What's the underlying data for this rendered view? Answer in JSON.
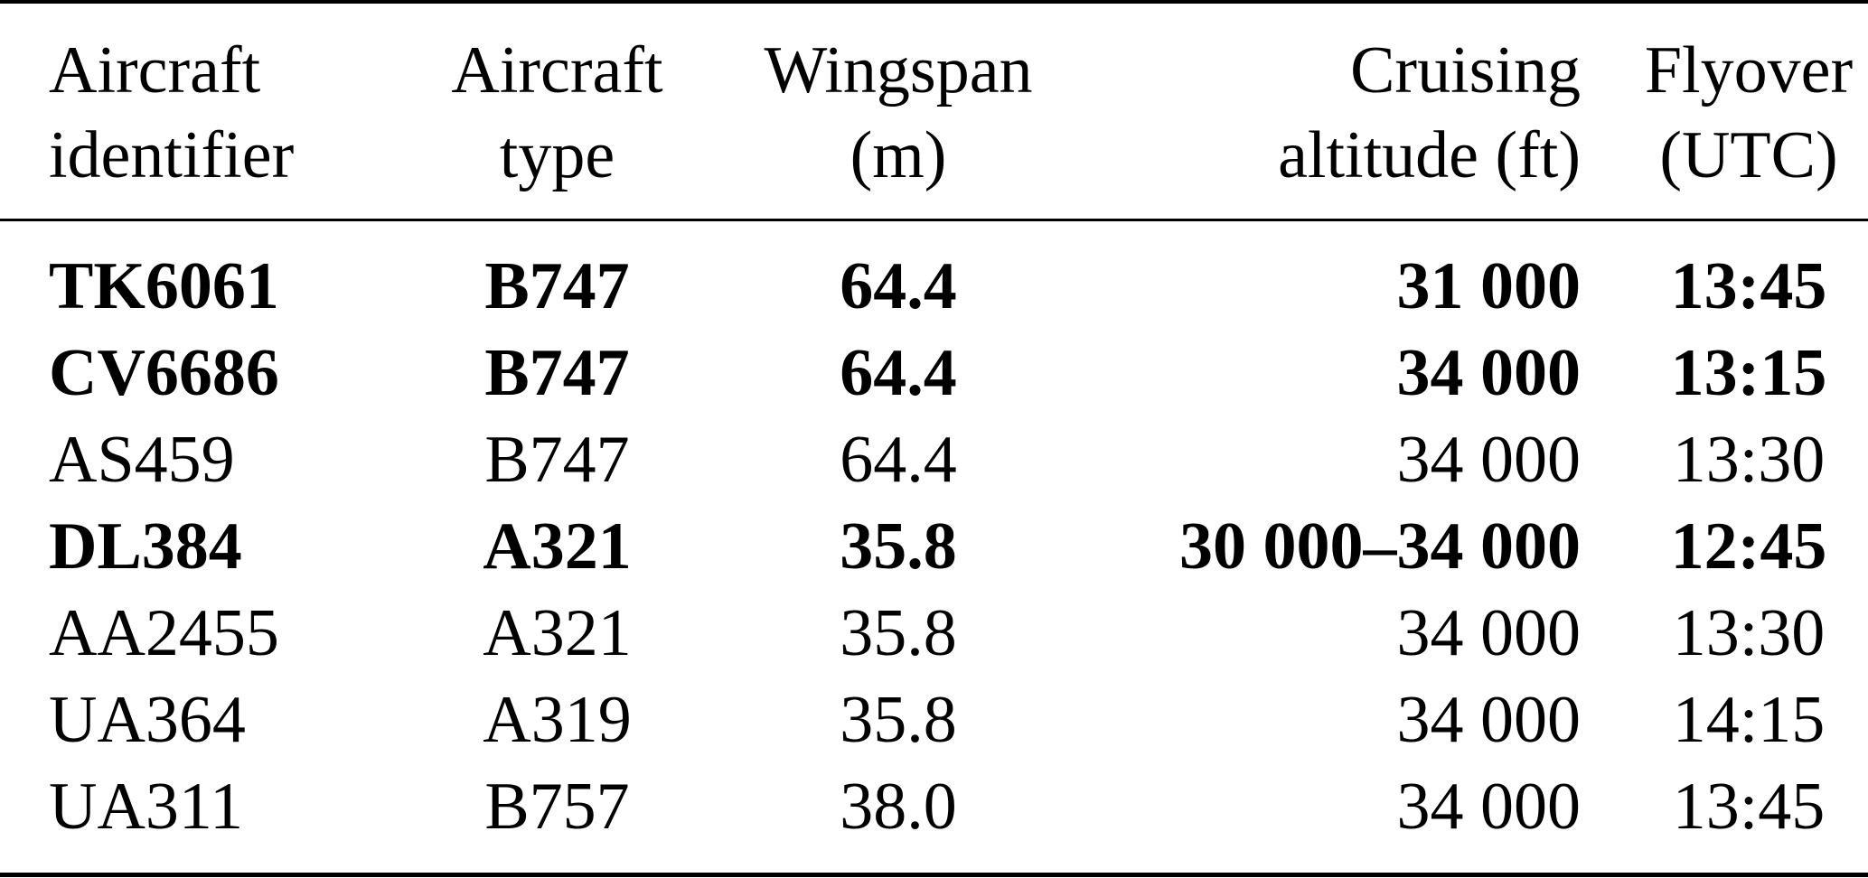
{
  "table": {
    "headers": [
      {
        "line1": "Aircraft",
        "line2": "identifier"
      },
      {
        "line1": "Aircraft",
        "line2": "type"
      },
      {
        "line1": "Wingspan",
        "line2": "(m)"
      },
      {
        "line1": "Cruising",
        "line2": "altitude (ft)"
      },
      {
        "line1": "Flyover",
        "line2": "(UTC)"
      }
    ],
    "rows": [
      {
        "bold": true,
        "id": "TK6061",
        "type": "B747",
        "wingspan": "64.4",
        "altitude": "31 000",
        "flyover": "13:45"
      },
      {
        "bold": true,
        "id": "CV6686",
        "type": "B747",
        "wingspan": "64.4",
        "altitude": "34 000",
        "flyover": "13:15"
      },
      {
        "bold": false,
        "id": "AS459",
        "type": "B747",
        "wingspan": "64.4",
        "altitude": "34 000",
        "flyover": "13:30"
      },
      {
        "bold": true,
        "id": "DL384",
        "type": "A321",
        "wingspan": "35.8",
        "altitude": "30 000–34 000",
        "flyover": "12:45"
      },
      {
        "bold": false,
        "id": "AA2455",
        "type": "A321",
        "wingspan": "35.8",
        "altitude": "34 000",
        "flyover": "13:30"
      },
      {
        "bold": false,
        "id": "UA364",
        "type": "A319",
        "wingspan": "35.8",
        "altitude": "34 000",
        "flyover": "14:15"
      },
      {
        "bold": false,
        "id": "UA311",
        "type": "B757",
        "wingspan": "38.0",
        "altitude": "34 000",
        "flyover": "13:45"
      }
    ]
  }
}
